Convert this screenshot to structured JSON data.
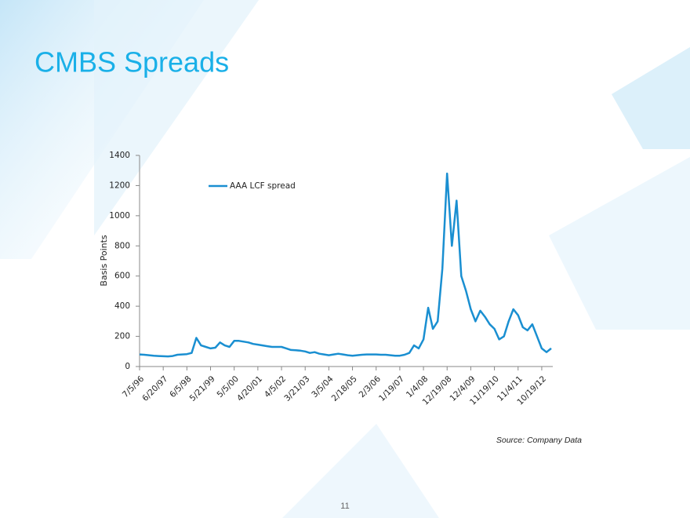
{
  "chart_data": {
    "type": "line",
    "title": "CMBS Spreads",
    "y_label": "Basis Points",
    "categories": [
      "7/5/96",
      null,
      null,
      null,
      null,
      "6/20/97",
      null,
      null,
      null,
      null,
      "6/5/98",
      null,
      null,
      null,
      null,
      "5/21/99",
      null,
      null,
      null,
      null,
      "5/5/00",
      null,
      null,
      null,
      null,
      "4/20/01",
      null,
      null,
      null,
      null,
      "4/5/02",
      null,
      null,
      null,
      null,
      "3/21/03",
      null,
      null,
      null,
      null,
      "3/5/04",
      null,
      null,
      null,
      null,
      "2/18/05",
      null,
      null,
      null,
      null,
      "2/3/06",
      null,
      null,
      null,
      null,
      "1/19/07",
      null,
      null,
      null,
      null,
      "1/4/08",
      null,
      null,
      null,
      null,
      "12/19/08",
      null,
      null,
      null,
      null,
      "12/4/09",
      null,
      null,
      null,
      null,
      "11/19/10",
      null,
      null,
      null,
      null,
      "11/4/11",
      null,
      null,
      null,
      null,
      "10/19/12",
      null,
      null
    ],
    "series": [
      {
        "name": "AAA LCF spread",
        "color": "#1a8fd1",
        "values": [
          80,
          78,
          75,
          72,
          70,
          68,
          67,
          70,
          78,
          80,
          82,
          90,
          190,
          140,
          130,
          120,
          125,
          160,
          140,
          130,
          170,
          170,
          165,
          160,
          150,
          145,
          140,
          135,
          130,
          130,
          130,
          120,
          110,
          108,
          105,
          100,
          90,
          95,
          85,
          80,
          75,
          80,
          85,
          80,
          75,
          72,
          75,
          78,
          80,
          80,
          80,
          78,
          78,
          75,
          72,
          72,
          78,
          90,
          140,
          120,
          180,
          390,
          250,
          300,
          650,
          1280,
          800,
          1100,
          600,
          500,
          380,
          300,
          370,
          330,
          280,
          250,
          180,
          200,
          300,
          380,
          340,
          260,
          240,
          280,
          200,
          120,
          95,
          120
        ]
      }
    ],
    "ylim": [
      0,
      1400
    ],
    "yticks": [
      0,
      200,
      400,
      600,
      800,
      1000,
      1200,
      1400
    ],
    "grid": false,
    "legend": "top-left"
  },
  "source": "Source: Company Data",
  "page_number": "11"
}
